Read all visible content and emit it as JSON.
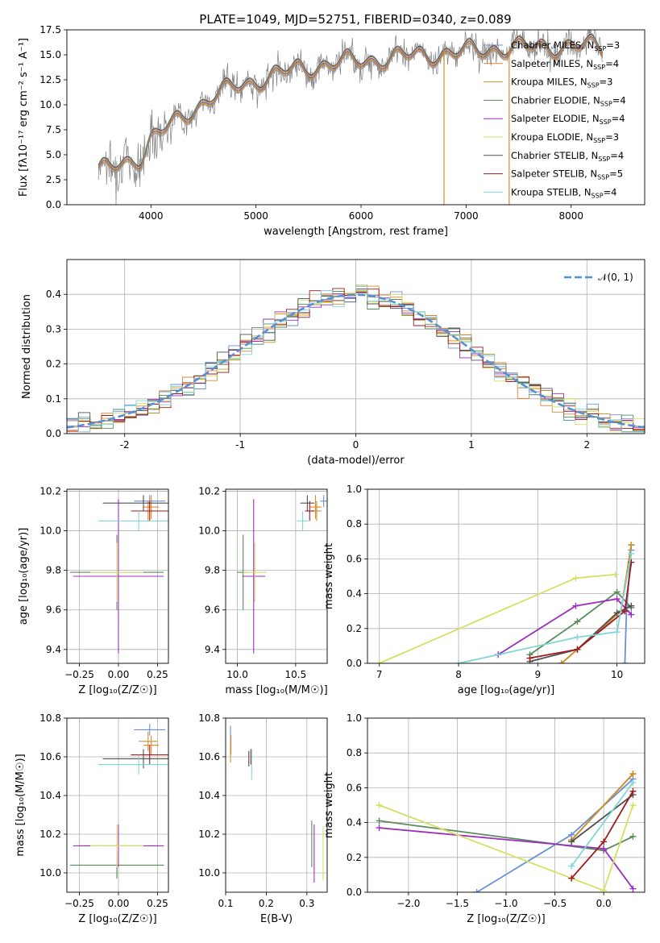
{
  "figure_title": "PLATE=1049, MJD=52751, FIBERID=0340, z=0.089",
  "colors": {
    "Chabrier MILES": "#6a8fd8",
    "Salpeter MILES": "#e8822a",
    "Kroupa MILES": "#c8902c",
    "Chabrier ELODIE": "#5a8a5a",
    "Salpeter ELODIE": "#9b2fc0",
    "Kroupa ELODIE": "#d4e060",
    "Chabrier STELIB": "#505050",
    "Salpeter STELIB": "#a01818",
    "Kroupa STELIB": "#7fd6d6",
    "data": "#808080",
    "gauss": "#5a8fd0",
    "grid": "#b0b0b0"
  },
  "chart_data": [
    {
      "id": "spectrum",
      "type": "line",
      "xlabel": "wavelength [Angstrom, rest frame]",
      "ylabel": "Flux [fλ10⁻¹⁷ erg cm⁻² s⁻¹ A⁻¹]",
      "xlim": [
        3200,
        8700
      ],
      "ylim": [
        0,
        17.5
      ],
      "xticks": [
        4000,
        5000,
        6000,
        7000,
        8000
      ],
      "yticks": [
        "0.0",
        "2.5",
        "5.0",
        "7.5",
        "10.0",
        "12.5",
        "15.0",
        "17.5"
      ],
      "continuum_x": [
        3500,
        3700,
        3900,
        4000,
        4200,
        4400,
        4600,
        4800,
        5000,
        5200,
        5400,
        5600,
        5800,
        6000,
        6200,
        6400,
        6600,
        6800,
        7000,
        7200,
        7400,
        7600,
        7800,
        8000,
        8200,
        8300
      ],
      "continuum_y": [
        3.2,
        4.0,
        4.8,
        6.5,
        8.0,
        9.6,
        10.8,
        11.8,
        12.4,
        13.0,
        13.6,
        13.9,
        14.2,
        14.4,
        14.6,
        14.8,
        15.0,
        15.1,
        15.3,
        15.5,
        15.7,
        15.7,
        15.8,
        15.9,
        15.8,
        15.6
      ],
      "legend": [
        "Chabrier MILES, N_SSP=3",
        "Salpeter MILES, N_SSP=4",
        "Kroupa MILES, N_SSP=3",
        "Chabrier ELODIE, N_SSP=4",
        "Salpeter ELODIE, N_SSP=4",
        "Kroupa ELODIE, N_SSP=3",
        "Chabrier STELIB, N_SSP=4",
        "Salpeter STELIB, N_SSP=5",
        "Kroupa STELIB, N_SSP=4"
      ],
      "legend_position": "right"
    },
    {
      "id": "residuals",
      "type": "histogram",
      "xlabel": "(data-model)/error",
      "ylabel": "Normed distribution",
      "xlim": [
        -2.5,
        2.5
      ],
      "ylim": [
        0,
        0.5
      ],
      "xticks": [
        -2,
        -1,
        0,
        1,
        2
      ],
      "yticks": [
        "0.0",
        "0.1",
        "0.2",
        "0.3",
        "0.4"
      ],
      "legend": [
        "𝒩(0, 1)"
      ],
      "legend_position": "top-right"
    },
    {
      "id": "age_vs_Z",
      "type": "scatter",
      "xlabel": "Z [log₁₀(Z/Z☉)]",
      "ylabel": "age  [log₁₀(age/yr)]",
      "xlim": [
        -0.33,
        0.32
      ],
      "ylim": [
        9.33,
        10.21
      ],
      "xticks": [
        -0.25,
        0,
        0.25
      ],
      "xticklabels": [
        "−0.25",
        "0.00",
        "0.25"
      ],
      "yticks": [
        9.4,
        9.6,
        9.8,
        10.0,
        10.2
      ],
      "yticklabels": [
        "9.4",
        "9.6",
        "9.8",
        "10.0",
        "10.2"
      ],
      "points": [
        {
          "model": "Chabrier MILES",
          "x": 0.2,
          "y": 10.15,
          "xerr": 0.1,
          "yerr": 0.03
        },
        {
          "model": "Salpeter MILES",
          "x": 0.21,
          "y": 10.12,
          "xerr": 0.05,
          "yerr": 0.06
        },
        {
          "model": "Kroupa MILES",
          "x": 0.19,
          "y": 10.1,
          "xerr": 0.06,
          "yerr": 0.05
        },
        {
          "model": "Chabrier ELODIE",
          "x": -0.01,
          "y": 9.79,
          "xerr": 0.3,
          "yerr": 0.19
        },
        {
          "model": "Salpeter ELODIE",
          "x": 0.0,
          "y": 9.77,
          "xerr": 0.29,
          "yerr": 0.39
        },
        {
          "model": "Kroupa ELODIE",
          "x": -0.01,
          "y": 9.79,
          "xerr": 0.17,
          "yerr": 0.15
        },
        {
          "model": "Chabrier STELIB",
          "x": 0.16,
          "y": 10.14,
          "xerr": 0.26,
          "yerr": 0.04
        },
        {
          "model": "Salpeter STELIB",
          "x": 0.2,
          "y": 10.1,
          "xerr": 0.12,
          "yerr": 0.05
        },
        {
          "model": "Kroupa STELIB",
          "x": 0.13,
          "y": 10.05,
          "xerr": 0.26,
          "yerr": 0.05
        }
      ]
    },
    {
      "id": "age_vs_mass",
      "type": "scatter",
      "xlabel": "mass [log₁₀(M/M☉)]",
      "ylabel": "",
      "xlim": [
        9.9,
        10.77
      ],
      "ylim": [
        9.33,
        10.21
      ],
      "xticks": [
        10.0,
        10.5
      ],
      "xticklabels": [
        "10.0",
        "10.5"
      ],
      "yticks": [
        9.4,
        9.6,
        9.8,
        10.0,
        10.2
      ],
      "yticklabels": [
        "9.4",
        "9.6",
        "9.8",
        "10.0",
        "10.2"
      ],
      "points": [
        {
          "model": "Chabrier MILES",
          "x": 10.74,
          "y": 10.15,
          "xerr": 0.03,
          "yerr": 0.03
        },
        {
          "model": "Salpeter MILES",
          "x": 10.67,
          "y": 10.12,
          "xerr": 0.05,
          "yerr": 0.06
        },
        {
          "model": "Kroupa MILES",
          "x": 10.68,
          "y": 10.1,
          "xerr": 0.04,
          "yerr": 0.05
        },
        {
          "model": "Chabrier ELODIE",
          "x": 10.05,
          "y": 9.79,
          "xerr": 0.05,
          "yerr": 0.19
        },
        {
          "model": "Salpeter ELODIE",
          "x": 10.14,
          "y": 9.77,
          "xerr": 0.1,
          "yerr": 0.39
        },
        {
          "model": "Kroupa ELODIE",
          "x": 10.15,
          "y": 9.79,
          "xerr": 0.1,
          "yerr": 0.15
        },
        {
          "model": "Chabrier STELIB",
          "x": 10.6,
          "y": 10.14,
          "xerr": 0.06,
          "yerr": 0.04
        },
        {
          "model": "Salpeter STELIB",
          "x": 10.62,
          "y": 10.1,
          "xerr": 0.04,
          "yerr": 0.05
        },
        {
          "model": "Kroupa STELIB",
          "x": 10.56,
          "y": 10.05,
          "xerr": 0.05,
          "yerr": 0.05
        }
      ]
    },
    {
      "id": "weight_vs_age",
      "type": "line",
      "xlabel": "age  [log₁₀(age/yr)]",
      "ylabel": "mass weight",
      "xlim": [
        6.85,
        10.35
      ],
      "ylim": [
        0,
        1
      ],
      "xticks": [
        7,
        8,
        9,
        10
      ],
      "yticks": [
        "0.0",
        "0.2",
        "0.4",
        "0.6",
        "0.8",
        "1.0"
      ],
      "series": [
        {
          "model": "Chabrier MILES",
          "x": [
            10.1,
            10.12,
            10.18
          ],
          "y": [
            0,
            0.3,
            0.65
          ]
        },
        {
          "model": "Salpeter MILES",
          "x": [
            9.3,
            10.05,
            10.18
          ],
          "y": [
            0,
            0.3,
            0.68
          ]
        },
        {
          "model": "Kroupa MILES",
          "x": [
            9.3,
            10.05,
            10.18
          ],
          "y": [
            0,
            0.3,
            0.68
          ]
        },
        {
          "model": "Chabrier ELODIE",
          "x": [
            8.9,
            9.5,
            10.0,
            10.18
          ],
          "y": [
            0.05,
            0.24,
            0.41,
            0.32
          ]
        },
        {
          "model": "Salpeter ELODIE",
          "x": [
            8.5,
            9.48,
            10.0,
            10.18
          ],
          "y": [
            0.05,
            0.33,
            0.37,
            0.28
          ]
        },
        {
          "model": "Kroupa ELODIE",
          "x": [
            7.0,
            9.48,
            9.98
          ],
          "y": [
            0,
            0.49,
            0.51
          ]
        },
        {
          "model": "Chabrier STELIB",
          "x": [
            8.9,
            9.5,
            10.0,
            10.18
          ],
          "y": [
            0.01,
            0.08,
            0.29,
            0.33
          ]
        },
        {
          "model": "Salpeter STELIB",
          "x": [
            8.9,
            9.5,
            10.1,
            10.18
          ],
          "y": [
            0.03,
            0.08,
            0.3,
            0.58
          ]
        },
        {
          "model": "Kroupa STELIB",
          "x": [
            8.0,
            9.5,
            10.0,
            10.18
          ],
          "y": [
            0,
            0.15,
            0.18,
            0.63
          ]
        }
      ]
    },
    {
      "id": "mass_vs_Z",
      "type": "scatter",
      "xlabel": "Z [log₁₀(Z/Z☉)]",
      "ylabel": "mass [log₁₀(M/M☉)]",
      "xlim": [
        -0.33,
        0.32
      ],
      "ylim": [
        9.9,
        10.8
      ],
      "xticks": [
        -0.25,
        0,
        0.25
      ],
      "xticklabels": [
        "−0.25",
        "0.00",
        "0.25"
      ],
      "yticks": [
        10.0,
        10.2,
        10.4,
        10.6,
        10.8
      ],
      "yticklabels": [
        "10.0",
        "10.2",
        "10.4",
        "10.6",
        "10.8"
      ],
      "points": [
        {
          "model": "Chabrier MILES",
          "x": 0.2,
          "y": 10.74,
          "xerr": 0.1,
          "yerr": 0.03
        },
        {
          "model": "Salpeter MILES",
          "x": 0.21,
          "y": 10.66,
          "xerr": 0.05,
          "yerr": 0.05
        },
        {
          "model": "Kroupa MILES",
          "x": 0.19,
          "y": 10.68,
          "xerr": 0.06,
          "yerr": 0.05
        },
        {
          "model": "Chabrier ELODIE",
          "x": -0.01,
          "y": 10.04,
          "xerr": 0.3,
          "yerr": 0.07
        },
        {
          "model": "Salpeter ELODIE",
          "x": 0.0,
          "y": 10.14,
          "xerr": 0.29,
          "yerr": 0.11
        },
        {
          "model": "Kroupa ELODIE",
          "x": -0.01,
          "y": 10.14,
          "xerr": 0.17,
          "yerr": 0.11
        },
        {
          "model": "Chabrier STELIB",
          "x": 0.16,
          "y": 10.59,
          "xerr": 0.26,
          "yerr": 0.05
        },
        {
          "model": "Salpeter STELIB",
          "x": 0.2,
          "y": 10.61,
          "xerr": 0.12,
          "yerr": 0.05
        },
        {
          "model": "Kroupa STELIB",
          "x": 0.13,
          "y": 10.56,
          "xerr": 0.26,
          "yerr": 0.05
        }
      ]
    },
    {
      "id": "mass_vs_ebv",
      "type": "scatter",
      "xlabel": "E(B-V)",
      "ylabel": "",
      "xlim": [
        0.1,
        0.35
      ],
      "ylim": [
        9.9,
        10.8
      ],
      "xticks": [
        0.1,
        0.2,
        0.3
      ],
      "xticklabels": [
        "0.1",
        "0.2",
        "0.3"
      ],
      "yticks": [
        10.0,
        10.2,
        10.4,
        10.6,
        10.8
      ],
      "yticklabels": [
        "10.0",
        "10.2",
        "10.4",
        "10.6",
        "10.8"
      ],
      "points": [
        {
          "model": "Chabrier MILES",
          "x": 0.112,
          "y": 10.7,
          "xerr": 0,
          "yerr": 0.06
        },
        {
          "model": "Salpeter MILES",
          "x": 0.113,
          "y": 10.66,
          "xerr": 0,
          "yerr": 0.05
        },
        {
          "model": "Kroupa MILES",
          "x": 0.112,
          "y": 10.62,
          "xerr": 0,
          "yerr": 0.05
        },
        {
          "model": "Chabrier ELODIE",
          "x": 0.312,
          "y": 10.15,
          "xerr": 0,
          "yerr": 0.12
        },
        {
          "model": "Salpeter ELODIE",
          "x": 0.318,
          "y": 10.1,
          "xerr": 0,
          "yerr": 0.15
        },
        {
          "model": "Kroupa ELODIE",
          "x": 0.34,
          "y": 10.1,
          "xerr": 0,
          "yerr": 0.14
        },
        {
          "model": "Chabrier STELIB",
          "x": 0.157,
          "y": 10.59,
          "xerr": 0,
          "yerr": 0.04
        },
        {
          "model": "Salpeter STELIB",
          "x": 0.162,
          "y": 10.6,
          "xerr": 0,
          "yerr": 0.04
        },
        {
          "model": "Kroupa STELIB",
          "x": 0.164,
          "y": 10.56,
          "xerr": 0,
          "yerr": 0.08
        }
      ]
    },
    {
      "id": "weight_vs_Z",
      "type": "line",
      "xlabel": "Z [log₁₀(Z/Z☉)]",
      "ylabel": "mass weight",
      "xlim": [
        -2.42,
        0.42
      ],
      "ylim": [
        0,
        1
      ],
      "xticks": [
        -2.0,
        -1.5,
        -1.0,
        -0.5,
        0.0
      ],
      "xticklabels": [
        "−2.0",
        "−1.5",
        "−1.0",
        "−0.5",
        "0.0"
      ],
      "yticks": [
        "0.0",
        "0.2",
        "0.4",
        "0.6",
        "0.8",
        "1.0"
      ],
      "series": [
        {
          "model": "Chabrier MILES",
          "x": [
            -1.3,
            -0.33,
            0.3
          ],
          "y": [
            0,
            0.33,
            0.65
          ]
        },
        {
          "model": "Salpeter MILES",
          "x": [
            -0.33,
            0.3
          ],
          "y": [
            0.3,
            0.68
          ]
        },
        {
          "model": "Kroupa MILES",
          "x": [
            -0.33,
            0.3
          ],
          "y": [
            0.3,
            0.68
          ]
        },
        {
          "model": "Chabrier ELODIE",
          "x": [
            -2.3,
            0.0,
            0.3
          ],
          "y": [
            0.41,
            0.24,
            0.32
          ]
        },
        {
          "model": "Salpeter ELODIE",
          "x": [
            -2.3,
            0.0,
            0.3
          ],
          "y": [
            0.37,
            0.25,
            0.02
          ]
        },
        {
          "model": "Kroupa ELODIE",
          "x": [
            -2.3,
            0.0,
            0.3
          ],
          "y": [
            0.5,
            0.01,
            0.5
          ]
        },
        {
          "model": "Chabrier STELIB",
          "x": [
            -0.33,
            0.3
          ],
          "y": [
            0.29,
            0.56
          ]
        },
        {
          "model": "Salpeter STELIB",
          "x": [
            -0.33,
            0.0,
            0.3
          ],
          "y": [
            0.08,
            0.29,
            0.58
          ]
        },
        {
          "model": "Kroupa STELIB",
          "x": [
            -0.33,
            0.3
          ],
          "y": [
            0.15,
            0.63
          ]
        }
      ]
    }
  ]
}
